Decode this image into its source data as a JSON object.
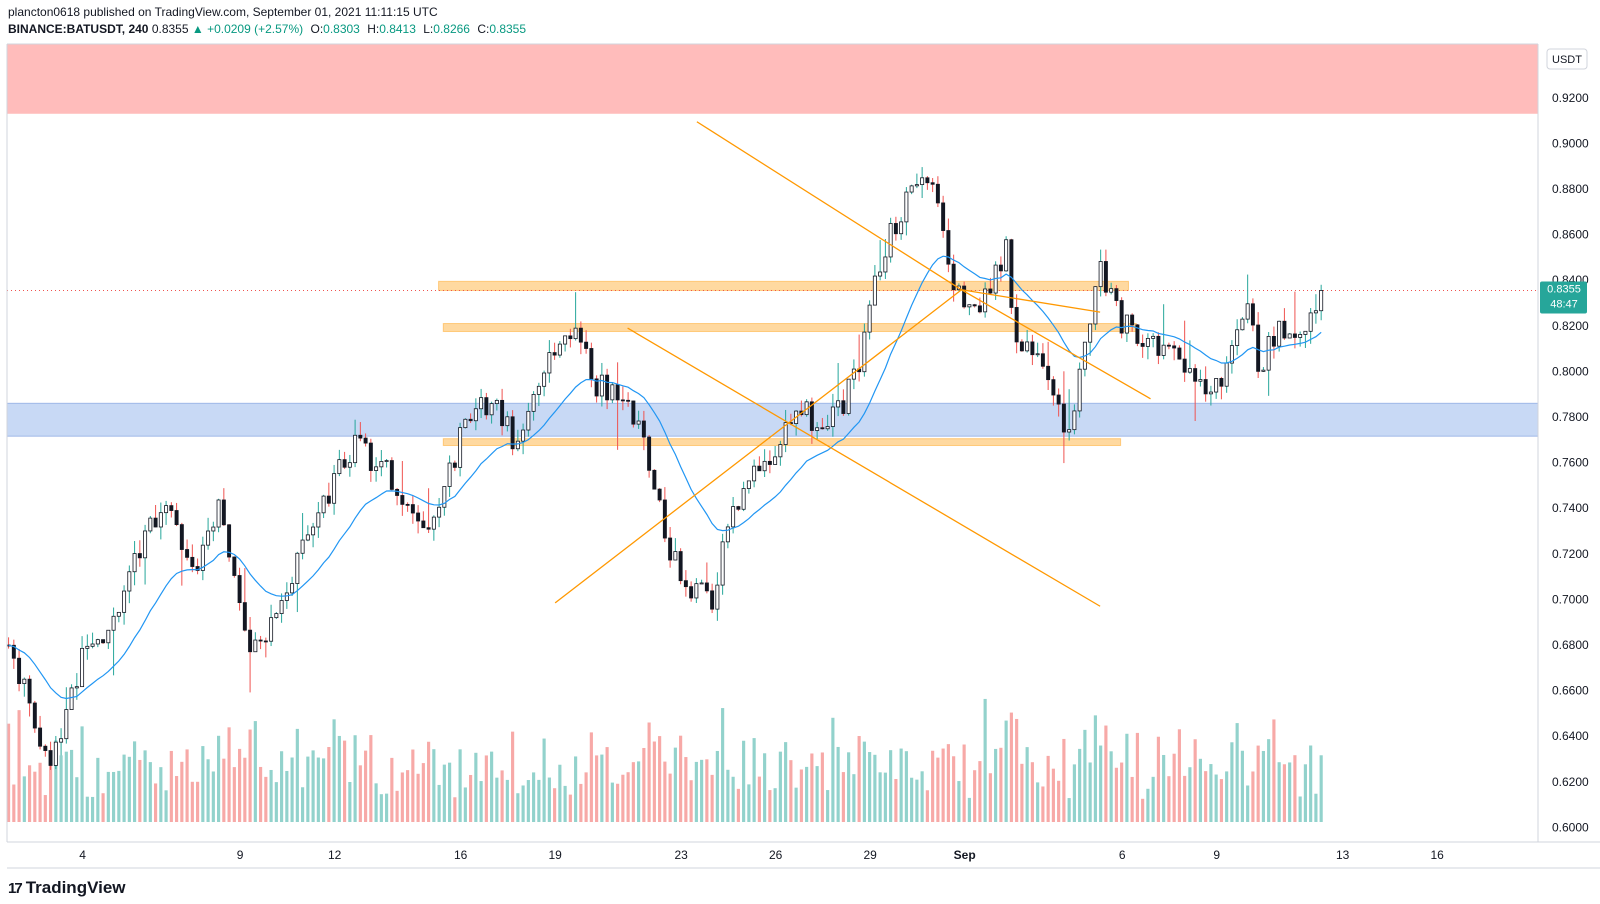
{
  "header": {
    "line1": "plancton0618 published on TradingView.com, September 01, 2021 11:11:15 UTC",
    "symbol": "BINANCE:BATUSDT, 240",
    "last": "0.8355",
    "change": "▲ +0.0209 (+2.57%)",
    "o_label": "O:",
    "o_value": "0.8303",
    "h_label": "H:",
    "h_value": "0.8413",
    "l_label": "L:",
    "l_value": "0.8266",
    "c_label": "C:",
    "c_value": "0.8355"
  },
  "price_scale": {
    "currency": "USDT",
    "last_price": "0.8355",
    "countdown": "48:47"
  },
  "logo": {
    "mark": "17",
    "text": "TradingView"
  },
  "colors": {
    "up": "#26a69a",
    "down": "#ef5350",
    "candle_body": "#131722",
    "ema": "#2196f3",
    "trendline": "#ff9800",
    "sr_band": "#ffcc80",
    "supply_zone": "#ffbcbb",
    "demand_zone": "#c8d9f5",
    "last_price_tag": "#26a69a"
  },
  "chart_data": {
    "type": "candlestick",
    "symbol": "BINANCE:BATUSDT",
    "interval": "240",
    "y_ticks": [
      "0.9200",
      "0.9000",
      "0.8800",
      "0.8600",
      "0.8400",
      "0.8200",
      "0.8000",
      "0.7800",
      "0.7600",
      "0.7400",
      "0.7200",
      "0.7000",
      "0.6800",
      "0.6600",
      "0.6400",
      "0.6200",
      "0.6000"
    ],
    "x_ticks": [
      {
        "label": "4",
        "day": 4
      },
      {
        "label": "9",
        "day": 9
      },
      {
        "label": "12",
        "day": 12
      },
      {
        "label": "16",
        "day": 16
      },
      {
        "label": "19",
        "day": 19
      },
      {
        "label": "23",
        "day": 23
      },
      {
        "label": "26",
        "day": 26
      },
      {
        "label": "29",
        "day": 29
      },
      {
        "label": "Sep",
        "day": 32
      },
      {
        "label": "6",
        "day": 37
      },
      {
        "label": "9",
        "day": 40
      },
      {
        "label": "13",
        "day": 44
      },
      {
        "label": "16",
        "day": 47
      }
    ],
    "ylim": [
      0.5936,
      0.9436
    ],
    "xlim_days": [
      1.6,
      50.2
    ],
    "candles_per_day": 6,
    "first_candle_day": 1.65,
    "anchors": [
      [
        0,
        0.68
      ],
      [
        8,
        0.625
      ],
      [
        14,
        0.675
      ],
      [
        20,
        0.69
      ],
      [
        26,
        0.73
      ],
      [
        30,
        0.745
      ],
      [
        36,
        0.71
      ],
      [
        40,
        0.745
      ],
      [
        46,
        0.675
      ],
      [
        52,
        0.7
      ],
      [
        58,
        0.735
      ],
      [
        66,
        0.77
      ],
      [
        72,
        0.755
      ],
      [
        76,
        0.74
      ],
      [
        80,
        0.725
      ],
      [
        86,
        0.77
      ],
      [
        92,
        0.79
      ],
      [
        96,
        0.77
      ],
      [
        102,
        0.8
      ],
      [
        108,
        0.815
      ],
      [
        112,
        0.795
      ],
      [
        118,
        0.79
      ],
      [
        122,
        0.76
      ],
      [
        126,
        0.72
      ],
      [
        130,
        0.705
      ],
      [
        134,
        0.7
      ],
      [
        138,
        0.74
      ],
      [
        144,
        0.76
      ],
      [
        150,
        0.785
      ],
      [
        156,
        0.775
      ],
      [
        162,
        0.8
      ],
      [
        164,
        0.83
      ],
      [
        168,
        0.86
      ],
      [
        172,
        0.88
      ],
      [
        176,
        0.885
      ],
      [
        180,
        0.84
      ],
      [
        184,
        0.825
      ],
      [
        188,
        0.845
      ],
      [
        190,
        0.855
      ],
      [
        192,
        0.812
      ],
      [
        196,
        0.805
      ],
      [
        200,
        0.78
      ],
      [
        202,
        0.775
      ],
      [
        206,
        0.82
      ],
      [
        208,
        0.845
      ],
      [
        212,
        0.822
      ],
      [
        216,
        0.812
      ],
      [
        220,
        0.812
      ],
      [
        224,
        0.8
      ],
      [
        228,
        0.795
      ],
      [
        232,
        0.8
      ],
      [
        236,
        0.83
      ],
      [
        238,
        0.8
      ],
      [
        242,
        0.82
      ],
      [
        246,
        0.815
      ],
      [
        250,
        0.8355
      ]
    ],
    "ema_period": 20,
    "volume_ylim": [
      0,
      10
    ],
    "zones": [
      {
        "name": "supply",
        "from": 0.913,
        "to": 0.9436,
        "day_from": 1.6,
        "day_to": 50.2
      },
      {
        "name": "demand",
        "from": 0.7716,
        "to": 0.786,
        "day_from": 1.6,
        "day_to": 50.2
      }
    ],
    "sr_bands": [
      {
        "from": 0.8355,
        "to": 0.8395,
        "day_from": 15.3,
        "day_to": 37.2
      },
      {
        "from": 0.8175,
        "to": 0.821,
        "day_from": 15.45,
        "day_to": 37.45
      },
      {
        "from": 0.7675,
        "to": 0.7705,
        "day_from": 15.45,
        "day_to": 36.95
      }
    ],
    "trendlines": [
      {
        "x1": 23.5,
        "y1": 0.9095,
        "x2": 31.9,
        "y2": 0.8358
      },
      {
        "x1": 31.9,
        "y1": 0.8358,
        "x2": 37.9,
        "y2": 0.788
      },
      {
        "x1": 19.0,
        "y1": 0.6985,
        "x2": 31.9,
        "y2": 0.8358
      },
      {
        "x1": 31.9,
        "y1": 0.8358,
        "x2": 36.3,
        "y2": 0.826
      },
      {
        "x1": 21.3,
        "y1": 0.819,
        "x2": 36.3,
        "y2": 0.697
      }
    ],
    "last_price": 0.8355
  }
}
